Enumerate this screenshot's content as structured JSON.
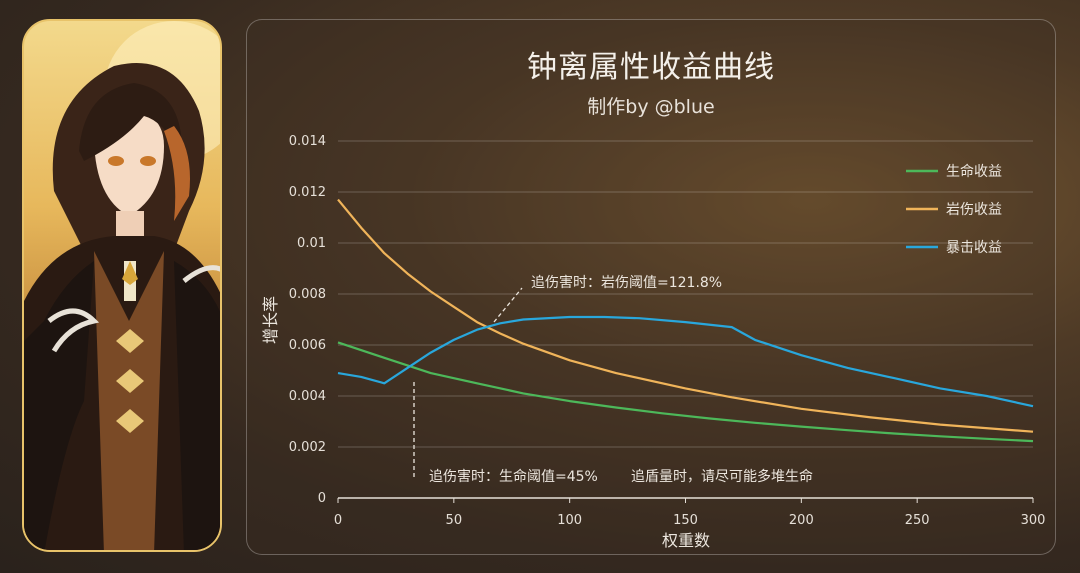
{
  "chart_data": {
    "type": "line",
    "title": "钟离属性收益曲线",
    "subtitle": "制作by @blue",
    "xlabel": "权重数",
    "ylabel": "增长率",
    "xlim": [
      0,
      300
    ],
    "ylim": [
      0,
      0.014
    ],
    "x_ticks": [
      "0",
      "50",
      "100",
      "150",
      "200",
      "250",
      "300"
    ],
    "y_ticks": [
      "0",
      "0.002",
      "0.004",
      "0.006",
      "0.008",
      "0.01",
      "0.012",
      "0.014"
    ],
    "grid": "horizontal",
    "legend_position": "top-right",
    "series": [
      {
        "name": "生命收益",
        "color": "#4db85a",
        "points": [
          [
            0,
            0.0061
          ],
          [
            20,
            0.0055
          ],
          [
            40,
            0.0049
          ],
          [
            60,
            0.0045
          ],
          [
            80,
            0.0041
          ],
          [
            100,
            0.0038
          ],
          [
            120,
            0.00355
          ],
          [
            140,
            0.00332
          ],
          [
            160,
            0.00312
          ],
          [
            180,
            0.00295
          ],
          [
            200,
            0.0028
          ],
          [
            220,
            0.00266
          ],
          [
            240,
            0.00253
          ],
          [
            260,
            0.00242
          ],
          [
            280,
            0.00232
          ],
          [
            300,
            0.00223
          ]
        ]
      },
      {
        "name": "岩伤收益",
        "color": "#f0b45a",
        "points": [
          [
            0,
            0.0117
          ],
          [
            10,
            0.0106
          ],
          [
            20,
            0.0096
          ],
          [
            30,
            0.0088
          ],
          [
            40,
            0.0081
          ],
          [
            50,
            0.0075
          ],
          [
            60,
            0.0069
          ],
          [
            70,
            0.00645
          ],
          [
            80,
            0.00605
          ],
          [
            100,
            0.0054
          ],
          [
            120,
            0.0049
          ],
          [
            150,
            0.0043
          ],
          [
            170,
            0.00395
          ],
          [
            200,
            0.0035
          ],
          [
            230,
            0.00316
          ],
          [
            260,
            0.00288
          ],
          [
            300,
            0.0026
          ]
        ]
      },
      {
        "name": "暴击收益",
        "color": "#29a7dc",
        "points": [
          [
            0,
            0.0049
          ],
          [
            10,
            0.00475
          ],
          [
            20,
            0.0045
          ],
          [
            30,
            0.0051
          ],
          [
            40,
            0.0057
          ],
          [
            50,
            0.0062
          ],
          [
            60,
            0.0066
          ],
          [
            70,
            0.00685
          ],
          [
            80,
            0.007
          ],
          [
            100,
            0.0071
          ],
          [
            115,
            0.0071
          ],
          [
            130,
            0.00705
          ],
          [
            150,
            0.0069
          ],
          [
            170,
            0.0067
          ],
          [
            180,
            0.0062
          ],
          [
            200,
            0.0056
          ],
          [
            220,
            0.0051
          ],
          [
            240,
            0.0047
          ],
          [
            260,
            0.0043
          ],
          [
            280,
            0.004
          ],
          [
            300,
            0.0036
          ]
        ]
      }
    ],
    "annotations": [
      {
        "text": "追伤害时：岩伤阈值=121.8%"
      },
      {
        "text": "追伤害时：生命阈值=45%"
      },
      {
        "text": "追盾量时，请尽可能多堆生命"
      }
    ]
  }
}
